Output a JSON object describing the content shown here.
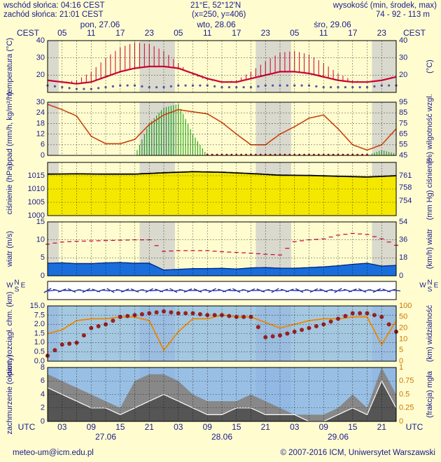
{
  "header": {
    "sunrise": "wschód słońca: 04:16 CEST",
    "sunset": "zachód słońca: 21:01 CEST",
    "coords": "21°E, 52°12'N",
    "grid": "(x=250, y=406)",
    "altitude_label": "wysokość (min, środek, max)",
    "altitude_values": "74 - 92 - 113 m"
  },
  "timezone_top": "CEST",
  "timezone_bottom": "UTC",
  "day_labels_top": [
    "pon, 27.06",
    "wto, 28.06",
    "śro, 29.06"
  ],
  "day_labels_bottom": [
    "27.06",
    "28.06",
    "29.06"
  ],
  "hour_labels_top": [
    "05",
    "11",
    "17",
    "23",
    "05",
    "11",
    "17",
    "23",
    "05",
    "11",
    "17",
    "23"
  ],
  "hour_labels_bottom": [
    "03",
    "09",
    "15",
    "21",
    "03",
    "09",
    "15",
    "21",
    "03",
    "09",
    "15",
    "21"
  ],
  "footer": {
    "email": "meteo-um@icm.edu.pl",
    "copyright": "© 2007-2016 ICM, Uniwersytet Warszawski"
  },
  "colors": {
    "background": "#fffdd0",
    "axis_text": "#1a1a8c",
    "night_band": "#cccccc",
    "temperature": "#cc0033",
    "dew_point": "#5555aa",
    "humidity": "#cc4411",
    "precip": "#009900",
    "pressure_fill": "#f4e800",
    "wind": "#0044cc",
    "visibility": "#ee8800",
    "cloud_base": "#992222",
    "cloud_fill": "#555555",
    "cloud_panel": "#7fb0e8"
  },
  "chart_data": [
    {
      "type": "line",
      "panel": "temperature",
      "ylabel_left": "temperatura (°C)",
      "ylabel_right": "(°C)",
      "ylim": [
        10,
        40
      ],
      "ticks": [
        20,
        30,
        40
      ],
      "x_hours": [
        0,
        3,
        6,
        9,
        12,
        15,
        18,
        21,
        24,
        27,
        30,
        33,
        36,
        39,
        42,
        45,
        48,
        51,
        54,
        57,
        60,
        63,
        66,
        69,
        72
      ],
      "series": [
        {
          "values": [
            17,
            16,
            15,
            16,
            19,
            22,
            24,
            25,
            25,
            24,
            21,
            18,
            16,
            16,
            18,
            20,
            22,
            22,
            21,
            19,
            17,
            16,
            16,
            17,
            19
          ]
        },
        {
          "values": [
            14,
            13,
            12,
            12,
            13,
            14,
            14,
            13,
            13,
            14,
            14,
            14,
            13,
            13,
            13,
            14,
            14,
            14,
            14,
            13,
            13,
            13,
            13,
            14,
            14
          ]
        },
        {
          "values": [
            17,
            16,
            17,
            22,
            30,
            36,
            39,
            38,
            34,
            27,
            20,
            17,
            16,
            17,
            22,
            28,
            33,
            34,
            32,
            27,
            21,
            17,
            16,
            17,
            20
          ]
        }
      ]
    },
    {
      "type": "line",
      "panel": "precipitation",
      "ylabel_left": "opad (mm/h, kg/m²/h)",
      "ylabel_right": "(%) wilgotność wzgl.",
      "ylim": [
        0,
        30
      ],
      "ylim_right": [
        45,
        95
      ],
      "ticks": [
        0,
        6,
        12,
        18,
        24,
        30
      ],
      "ticks_right": [
        45,
        55,
        65,
        75,
        85,
        95
      ],
      "x_hours": [
        0,
        3,
        6,
        9,
        12,
        15,
        18,
        21,
        24,
        27,
        30,
        33,
        36,
        39,
        42,
        45,
        48,
        51,
        54,
        57,
        60,
        63,
        66,
        69,
        72
      ],
      "series": [
        {
          "values": [
            93,
            88,
            82,
            63,
            56,
            56,
            60,
            74,
            83,
            88,
            86,
            84,
            76,
            65,
            55,
            55,
            65,
            72,
            80,
            83,
            70,
            55,
            50,
            55,
            70
          ]
        },
        {
          "values": [
            0,
            0,
            0,
            0,
            0,
            0,
            0,
            18,
            27,
            29,
            12,
            0,
            0,
            0,
            0,
            0,
            0,
            0,
            0,
            0,
            0,
            0,
            0,
            3,
            1
          ]
        }
      ]
    },
    {
      "type": "area",
      "panel": "pressure",
      "ylabel_left": "ciśnienie (hPa)",
      "ylabel_right": "(mm Hg) ciśnienie",
      "ylim": [
        1000,
        1020
      ],
      "ticks": [
        1000,
        1005,
        1010,
        1015
      ],
      "ticks_right": [
        "754",
        "758",
        "761"
      ],
      "x_hours": [
        0,
        6,
        12,
        18,
        24,
        30,
        36,
        42,
        48,
        54,
        60,
        66,
        72
      ],
      "values": [
        1015.6,
        1015.7,
        1015.6,
        1015.6,
        1016.1,
        1016.5,
        1016.3,
        1015.8,
        1015.2,
        1015.1,
        1014.8,
        1014.5,
        1015.0
      ]
    },
    {
      "type": "line",
      "panel": "wind",
      "ylabel_left": "wiatr (m/s)",
      "ylabel_right": "(km/h) wiatr",
      "ylim": [
        0,
        15
      ],
      "ticks": [
        0,
        5,
        10,
        15
      ],
      "ticks_right": [
        0,
        18,
        36,
        54
      ],
      "x_hours": [
        0,
        3,
        6,
        9,
        12,
        15,
        18,
        21,
        24,
        27,
        30,
        33,
        36,
        39,
        42,
        45,
        48,
        51,
        54,
        57,
        60,
        63,
        66,
        69,
        72
      ],
      "series": [
        {
          "values": [
            3.5,
            3.6,
            3.4,
            3.4,
            3.6,
            3.7,
            3.5,
            3.5,
            1.6,
            1.8,
            2.0,
            2.0,
            2.1,
            1.9,
            2.2,
            2.3,
            2.1,
            2.1,
            2.3,
            2.5,
            2.8,
            3.2,
            3.5,
            2.7,
            2.9
          ]
        },
        {
          "values": [
            8.8,
            9.4,
            9.6,
            9.7,
            9.8,
            9.9,
            10.0,
            10.0,
            6.8,
            7.0,
            7.0,
            7.0,
            6.7,
            6.5,
            6.3,
            6.0,
            5.8,
            9.5,
            10.0,
            10.3,
            11.3,
            11.8,
            11.5,
            10.3,
            8.5
          ]
        }
      ]
    },
    {
      "type": "scatter",
      "panel": "visibility",
      "ylabel_left": "pion. rozciągł. chm. (km)",
      "ylabel_right": "(km) widzialność",
      "ylim": [
        0,
        15
      ],
      "ticks": [
        "0.0",
        "0.5",
        "1.0",
        "1.5",
        "2.0",
        "7.5",
        "15.0"
      ],
      "ticks_right": [
        0,
        5,
        10,
        20,
        50,
        100
      ],
      "x_hours": [
        0,
        3,
        6,
        9,
        12,
        15,
        18,
        21,
        24,
        27,
        30,
        33,
        36,
        39,
        42,
        45,
        48,
        51,
        54,
        57,
        60,
        63,
        66,
        69,
        72
      ],
      "series": [
        {
          "values": [
            1.5,
            1.7,
            2.2,
            2.3,
            2.3,
            2.4,
            2.4,
            2.2,
            0.6,
            1.6,
            2.3,
            2.3,
            2.5,
            2.4,
            2.4,
            2.1,
            1.8,
            2.0,
            2.2,
            2.3,
            2.3,
            2.4,
            2.4,
            0.9,
            2.2
          ]
        },
        {
          "values": [
            0.3,
            0.9,
            1.0,
            1.8,
            2.0,
            2.4,
            2.5,
            2.6,
            2.7,
            2.6,
            2.6,
            2.5,
            2.5,
            2.4,
            2.4,
            1.3,
            1.4,
            1.6,
            1.8,
            2.0,
            2.3,
            2.6,
            2.6,
            2.4,
            1.6
          ]
        }
      ]
    },
    {
      "type": "area",
      "panel": "clouds",
      "ylabel_left": "zachmurzenie (oktanty)",
      "ylabel_right": "(frakcja) mgła",
      "ylim": [
        0,
        8
      ],
      "ticks": [
        0,
        2,
        4,
        6,
        8
      ],
      "ticks_right": [
        "0",
        "0.25",
        "0.5",
        "0.75",
        "1"
      ],
      "x_hours": [
        0,
        3,
        6,
        9,
        12,
        15,
        18,
        21,
        24,
        27,
        30,
        33,
        36,
        39,
        42,
        45,
        48,
        51,
        54,
        57,
        60,
        63,
        66,
        69,
        72
      ],
      "series": [
        {
          "values": [
            7,
            6,
            5,
            4,
            3,
            2,
            6,
            7,
            7,
            6,
            4,
            3,
            3,
            3,
            4,
            3,
            2,
            1,
            1,
            1,
            2,
            4,
            2,
            8,
            4
          ]
        },
        {
          "values": [
            5,
            4,
            3,
            2,
            2,
            1,
            2,
            3,
            4,
            3,
            2,
            1,
            1,
            2,
            2,
            1,
            1,
            1,
            0,
            0,
            1,
            2,
            1,
            6,
            2
          ]
        }
      ]
    }
  ]
}
